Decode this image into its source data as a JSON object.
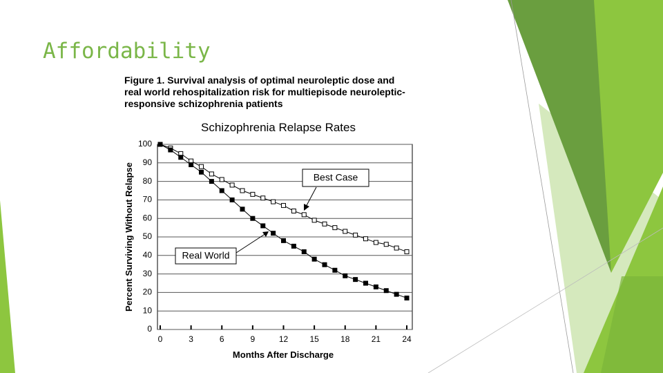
{
  "slide_title": "Affordability",
  "chart_data": {
    "type": "line",
    "caption": [
      "Figure 1. Survival analysis of optimal neuroleptic dose and",
      "real world rehospitalization risk for multiepisode neuroleptic-",
      "responsive schizophrenia patients"
    ],
    "title": "Schizophrenia Relapse Rates",
    "x_label": "Months After Discharge",
    "y_label": "Percent Surviving Without Relapse",
    "x": [
      0,
      1,
      2,
      3,
      4,
      5,
      6,
      7,
      8,
      9,
      10,
      11,
      12,
      13,
      14,
      15,
      16,
      17,
      18,
      19,
      20,
      21,
      22,
      23,
      24
    ],
    "series": [
      {
        "name": "Best Case",
        "color": "#ffffff",
        "values": [
          100,
          98,
          95,
          91,
          88,
          84,
          81,
          78,
          75,
          73,
          71,
          69,
          67,
          64,
          62,
          59,
          57,
          55,
          53,
          51,
          49,
          47,
          46,
          44,
          42
        ]
      },
      {
        "name": "Real World",
        "color": "#000000",
        "values": [
          100,
          97,
          93,
          89,
          85,
          80,
          75,
          70,
          65,
          60,
          56,
          52,
          48,
          45,
          42,
          38,
          35,
          32,
          29,
          27,
          25,
          23,
          21,
          19,
          17
        ]
      }
    ],
    "xlim": [
      0,
      24
    ],
    "xticks": [
      0,
      3,
      6,
      9,
      12,
      15,
      18,
      21,
      24
    ],
    "ylim": [
      0,
      100
    ],
    "yticks": [
      0,
      10,
      20,
      30,
      40,
      50,
      60,
      70,
      80,
      90,
      100
    ],
    "grid": true
  }
}
